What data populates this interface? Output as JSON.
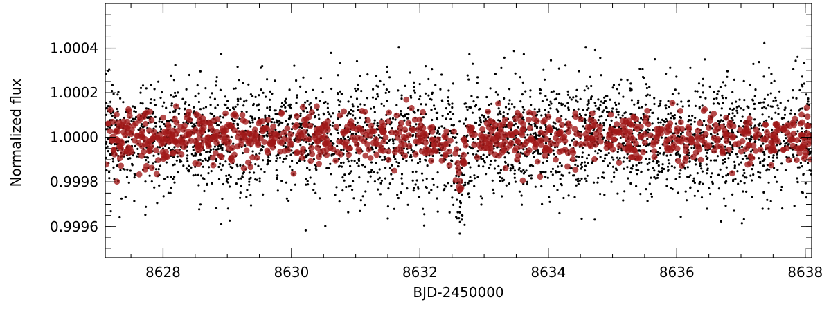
{
  "chart_data": {
    "type": "scatter",
    "title": "",
    "xlabel": "BJD-2450000",
    "ylabel": "Normalized flux",
    "xlim": [
      8627.1,
      8638.1
    ],
    "ylim": [
      0.99946,
      1.0006
    ],
    "x_ticks": [
      8628,
      8630,
      8632,
      8634,
      8636,
      8638
    ],
    "y_ticks": [
      0.9996,
      0.9998,
      1.0,
      1.0002,
      1.0004
    ],
    "y_tick_labels": [
      "0.9996",
      "0.9998",
      "1.0000",
      "1.0002",
      "1.0004"
    ],
    "x_minor_step": 0.5,
    "y_minor_step": 5e-05,
    "grid": false,
    "legend": "none",
    "transit": {
      "center": 8632.62,
      "depth": 0.00028,
      "half_width": 0.09
    },
    "series": [
      {
        "marker": "small-dot",
        "color": "#000000",
        "n_points": 3400,
        "x_range": [
          8627.1,
          8638.1
        ],
        "center": 1.0,
        "scatter_sd": 0.00013,
        "y_clip": [
          0.99955,
          1.00047
        ]
      },
      {
        "marker": "filled-circle",
        "color": "#a01818",
        "n_points": 1000,
        "x_range": [
          8627.1,
          8638.1
        ],
        "center": 1.0,
        "scatter_sd": 5.8e-05,
        "y_clip": [
          0.99964,
          1.00025
        ]
      }
    ]
  }
}
